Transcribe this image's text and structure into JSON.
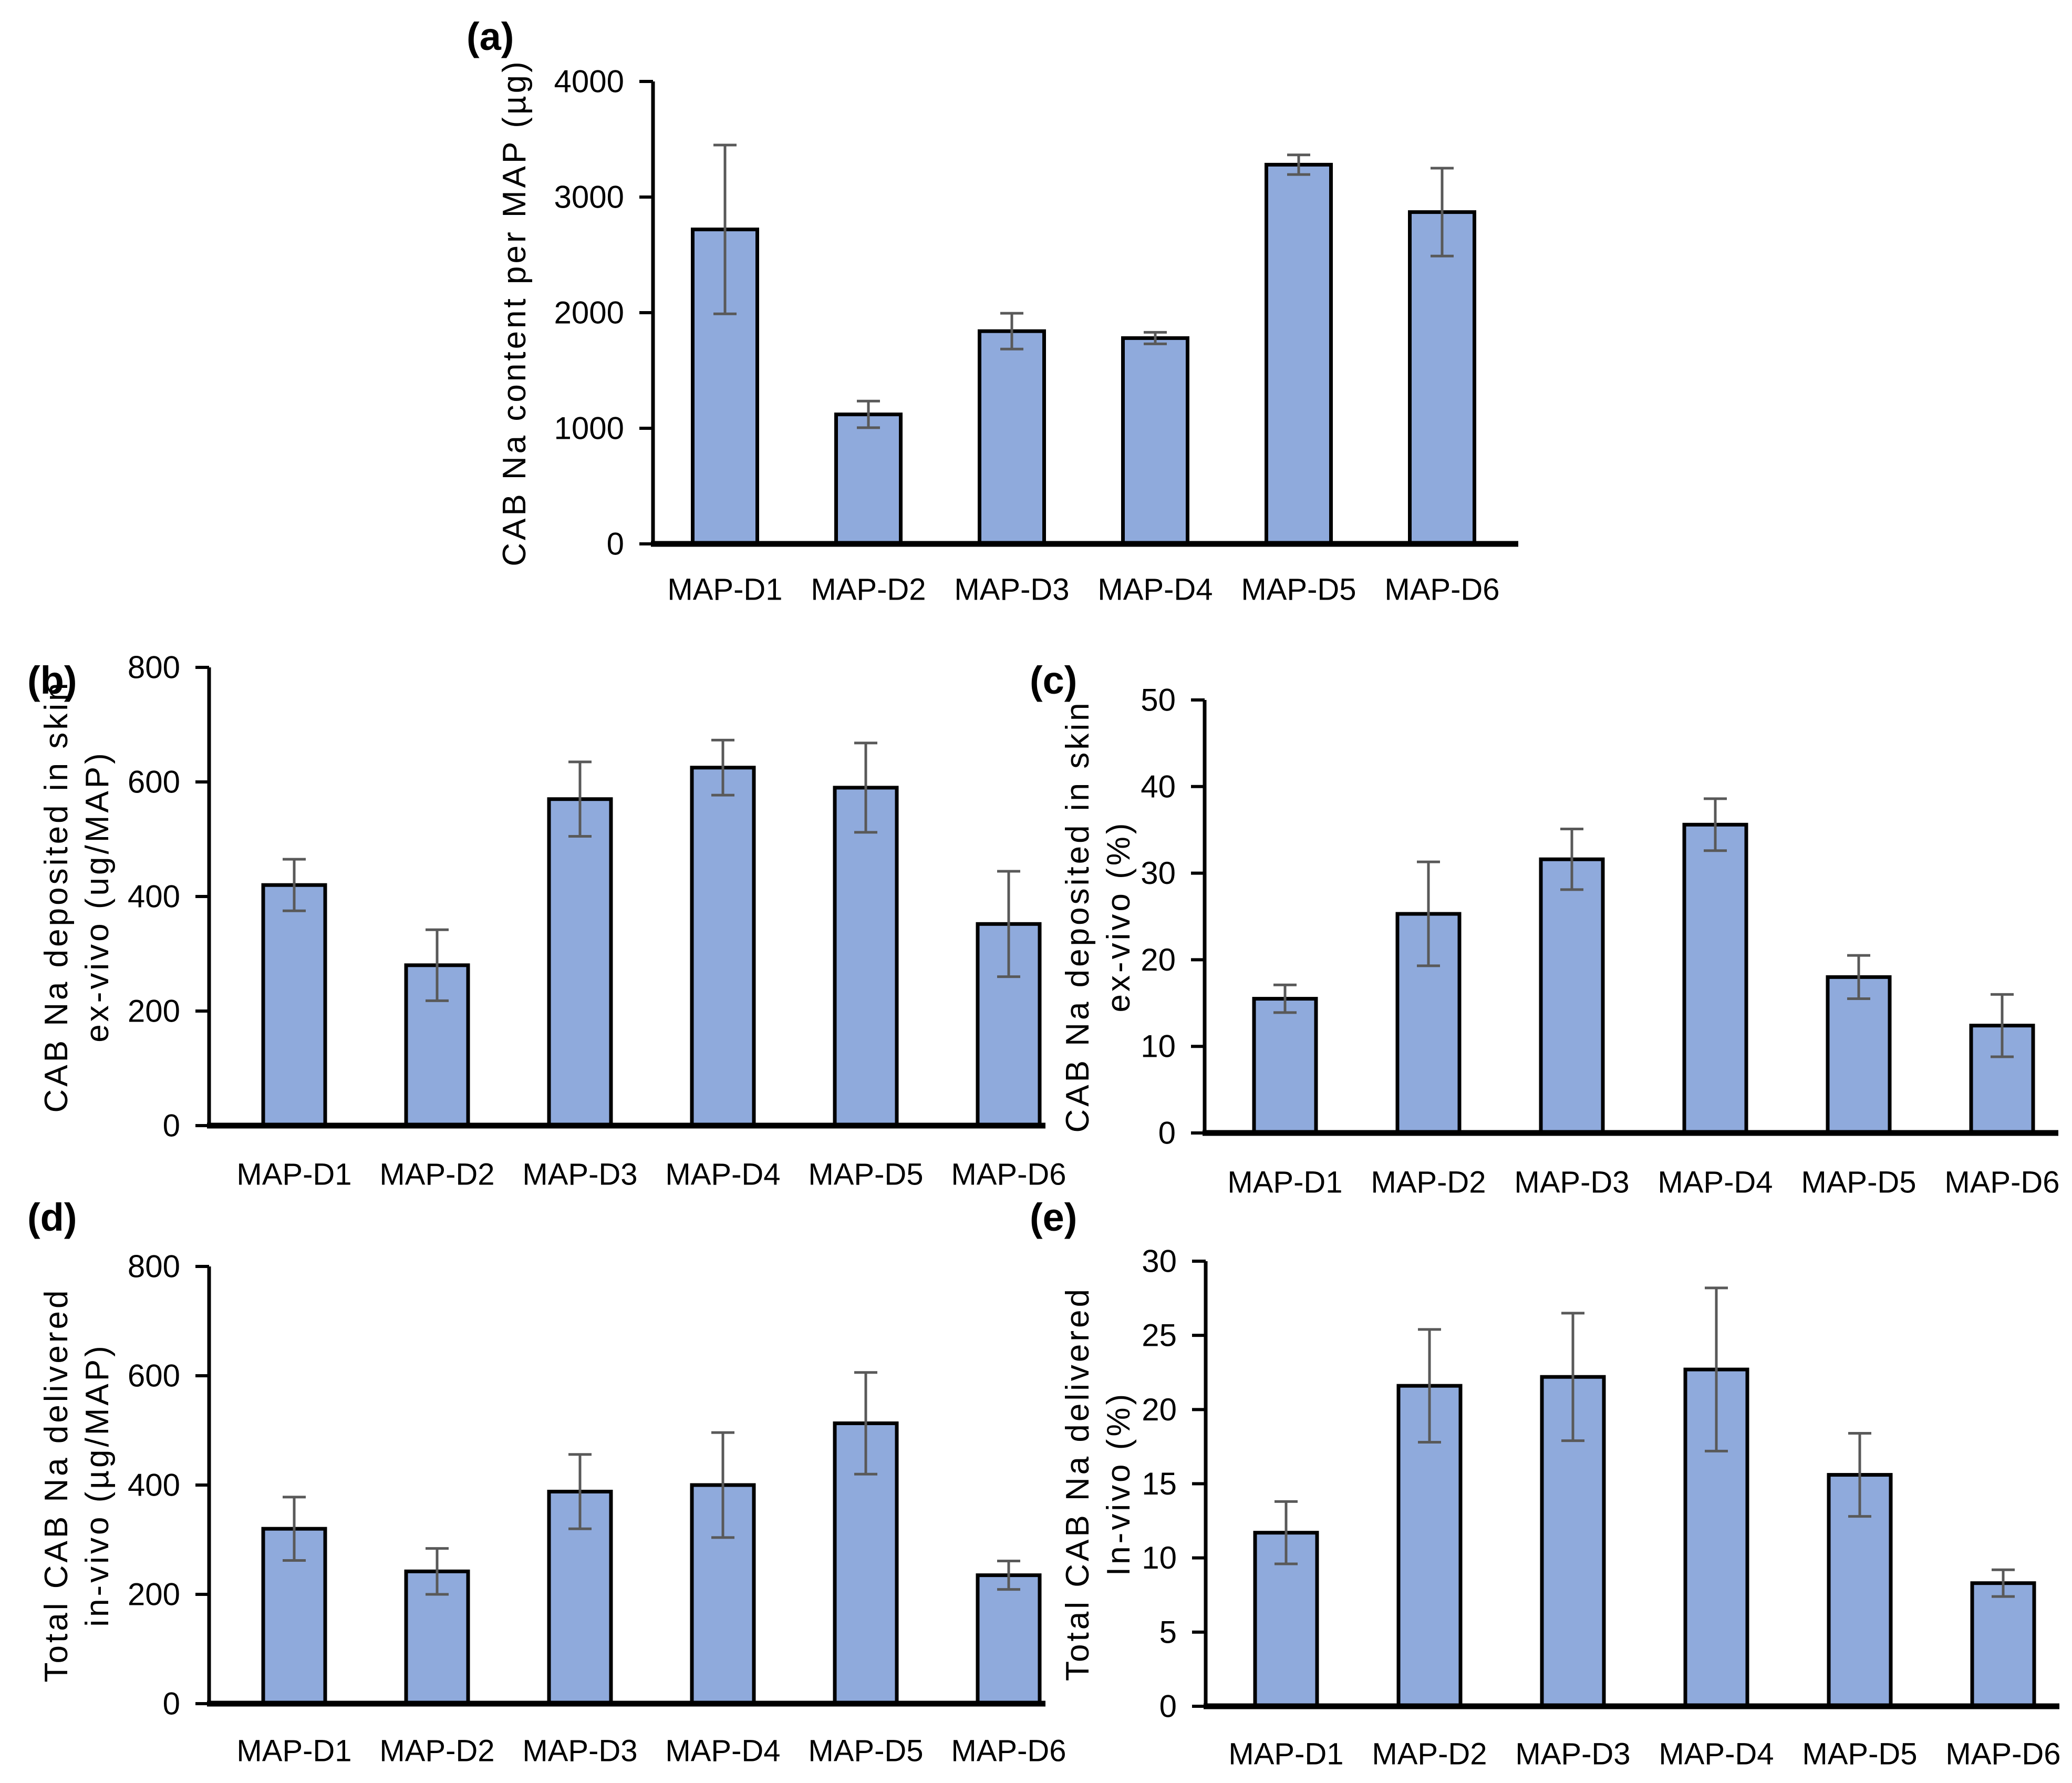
{
  "colors": {
    "bar_fill": "#8FAADC",
    "bar_border": "#000000",
    "error_bar": "#595959",
    "text": "#000000",
    "background": "#FFFFFF"
  },
  "chart_data": [
    {
      "type": "bar",
      "panel_label": "(a)",
      "ylabel": "CAB Na content per  MAP (µg)",
      "ylabel_lines": [
        "CAB Na content per  MAP (µg)"
      ],
      "xlabel": "",
      "categories": [
        "MAP-D1",
        "MAP-D2",
        "MAP-D3",
        "MAP-D4",
        "MAP-D5",
        "MAP-D6"
      ],
      "values": [
        2720,
        1120,
        1840,
        1780,
        3280,
        2870
      ],
      "errors": [
        730,
        115,
        155,
        50,
        85,
        380
      ],
      "ylim": [
        0,
        4000
      ],
      "yticks": [
        0,
        1000,
        2000,
        3000,
        4000
      ],
      "grid": false,
      "legend": null
    },
    {
      "type": "bar",
      "panel_label": "(b)",
      "ylabel": "CAB Na deposited in skin ex-vivo (ug/MAP)",
      "ylabel_lines": [
        "CAB Na deposited in skin",
        "ex-vivo (ug/MAP)"
      ],
      "xlabel": "",
      "categories": [
        "MAP-D1",
        "MAP-D2",
        "MAP-D3",
        "MAP-D4",
        "MAP-D5",
        "MAP-D6"
      ],
      "values": [
        420,
        280,
        570,
        625,
        590,
        352
      ],
      "errors": [
        45,
        62,
        65,
        48,
        78,
        92
      ],
      "ylim": [
        0,
        800
      ],
      "yticks": [
        0,
        200,
        400,
        600,
        800
      ],
      "grid": false,
      "legend": null
    },
    {
      "type": "bar",
      "panel_label": "(c)",
      "ylabel": "CAB Na deposited in skin ex-vivo (%)",
      "ylabel_lines": [
        "CAB Na deposited in skin",
        "ex-vivo (%)"
      ],
      "xlabel": "",
      "categories": [
        "MAP-D1",
        "MAP-D2",
        "MAP-D3",
        "MAP-D4",
        "MAP-D5",
        "MAP-D6"
      ],
      "values": [
        15.5,
        25.3,
        31.6,
        35.6,
        18,
        12.4
      ],
      "errors": [
        1.6,
        6,
        3.5,
        3,
        2.5,
        3.6
      ],
      "ylim": [
        0,
        50
      ],
      "yticks": [
        0,
        10,
        20,
        30,
        40,
        50
      ],
      "grid": false,
      "legend": null
    },
    {
      "type": "bar",
      "panel_label": "(d)",
      "ylabel": "Total CAB Na delivered in-vivo (µg/MAP)",
      "ylabel_lines": [
        "Total CAB Na delivered",
        "in-vivo (µg/MAP)"
      ],
      "xlabel": "",
      "categories": [
        "MAP-D1",
        "MAP-D2",
        "MAP-D3",
        "MAP-D4",
        "MAP-D5",
        "MAP-D6"
      ],
      "values": [
        320,
        242,
        388,
        400,
        513,
        235
      ],
      "errors": [
        58,
        42,
        68,
        96,
        93,
        26
      ],
      "ylim": [
        0,
        800
      ],
      "yticks": [
        0,
        200,
        400,
        600,
        800
      ],
      "grid": false,
      "legend": null
    },
    {
      "type": "bar",
      "panel_label": "(e)",
      "ylabel": "Total CAB Na delivered In-vivo (%)",
      "ylabel_lines": [
        "Total CAB Na delivered",
        "In-vivo (%)"
      ],
      "xlabel": "",
      "categories": [
        "MAP-D1",
        "MAP-D2",
        "MAP-D3",
        "MAP-D4",
        "MAP-D5",
        "MAP-D6"
      ],
      "values": [
        11.7,
        21.6,
        22.2,
        22.7,
        15.6,
        8.3
      ],
      "errors": [
        2.1,
        3.8,
        4.3,
        5.5,
        2.8,
        0.9
      ],
      "ylim": [
        0,
        30
      ],
      "yticks": [
        0,
        5,
        10,
        15,
        20,
        25,
        30
      ],
      "grid": false,
      "legend": null
    }
  ]
}
